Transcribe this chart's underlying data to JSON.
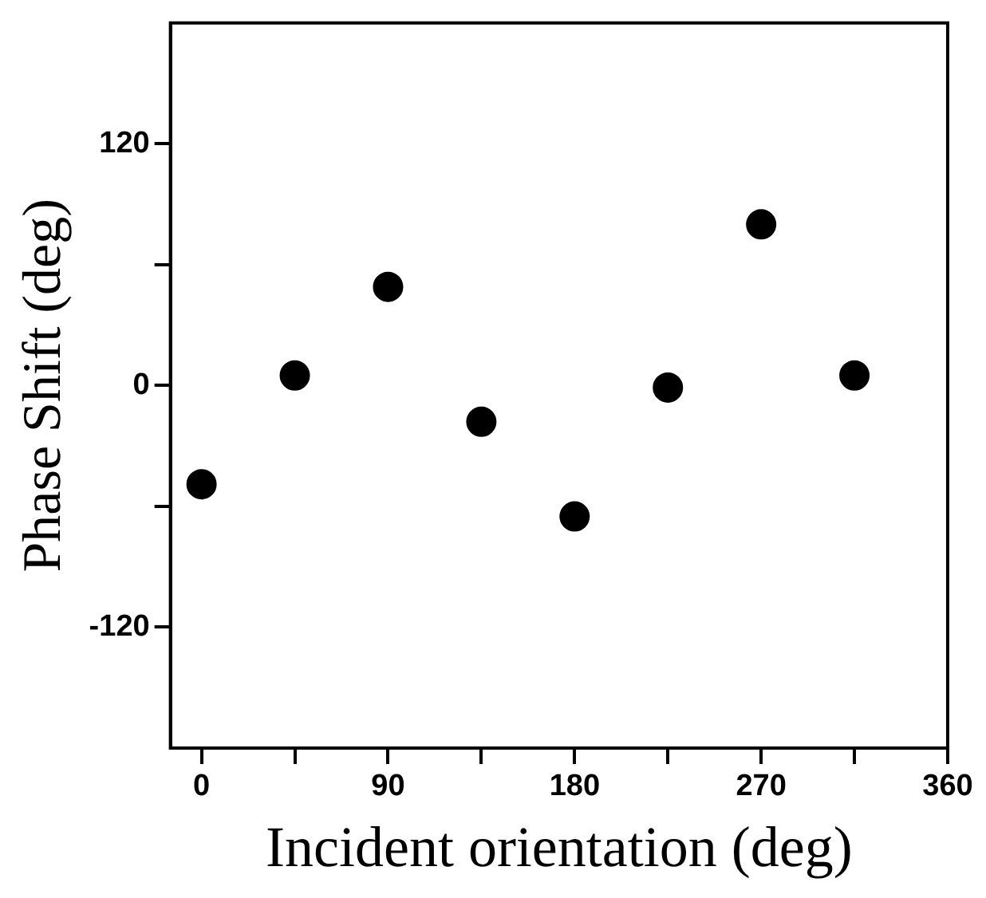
{
  "chart_data": {
    "type": "scatter",
    "xlabel": "Incident orientation (deg)",
    "ylabel": "Phase Shift (deg)",
    "x": [
      0,
      45,
      90,
      135,
      180,
      225,
      270,
      315
    ],
    "values": [
      -49,
      5,
      49,
      -18,
      -65,
      -1,
      80,
      5
    ],
    "color": "#000000",
    "marker": "circle",
    "xlim": [
      -15,
      360
    ],
    "xticks": [
      0,
      {
        "value": 45,
        "label": null
      },
      90,
      {
        "value": 135,
        "label": null
      },
      180,
      {
        "value": 225,
        "label": null
      },
      270,
      {
        "value": 315,
        "label": null
      },
      360
    ],
    "ylim": [
      -180,
      180
    ],
    "yticks": [
      -120,
      {
        "value": -60,
        "label": null
      },
      0,
      {
        "value": 60,
        "label": null
      },
      120
    ],
    "grid": false,
    "legend": false
  }
}
